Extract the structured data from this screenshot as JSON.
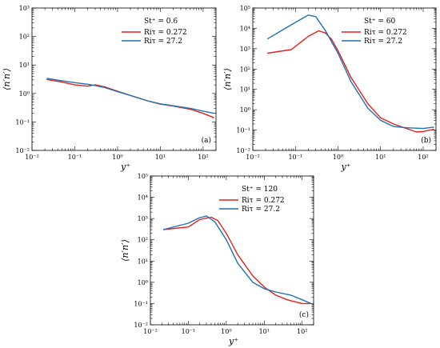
{
  "series_colors": {
    "low": "#e8201c",
    "high": "#1f72b4"
  },
  "chart_data": [
    {
      "type": "line",
      "panel_label": "(a)",
      "legend_title": "St⁺ = 0.6",
      "xlabel": "y⁺",
      "ylabel": "⟨n′n′⟩",
      "xscale": "log",
      "yscale": "log",
      "xlim": [
        0.01,
        200
      ],
      "ylim": [
        0.01,
        1000
      ],
      "xticks": [
        "10⁻²",
        "10⁻¹",
        "10⁰",
        "10¹",
        "10²"
      ],
      "yticks": [
        "10⁻²",
        "10⁻¹",
        "10⁰",
        "10¹",
        "10²",
        "10³"
      ],
      "legend": "top-right",
      "series": [
        {
          "name": "Riτ = 0.272",
          "color_key": "low",
          "x": [
            0.022,
            0.05,
            0.1,
            0.2,
            0.3,
            0.5,
            1,
            2,
            5,
            10,
            20,
            50,
            100,
            180
          ],
          "y": [
            3.1,
            2.5,
            2.0,
            1.8,
            2.0,
            1.7,
            1.2,
            0.85,
            0.55,
            0.42,
            0.36,
            0.28,
            0.2,
            0.14
          ]
        },
        {
          "name": "Riτ = 27.2",
          "color_key": "high",
          "x": [
            0.022,
            0.05,
            0.1,
            0.2,
            0.3,
            0.5,
            1,
            2,
            5,
            10,
            20,
            50,
            100,
            180
          ],
          "y": [
            3.4,
            2.8,
            2.4,
            2.1,
            1.9,
            1.6,
            1.15,
            0.85,
            0.55,
            0.43,
            0.37,
            0.3,
            0.24,
            0.2
          ]
        }
      ]
    },
    {
      "type": "line",
      "panel_label": "(b)",
      "legend_title": "St⁺ = 60",
      "xlabel": "y⁺",
      "ylabel": "⟨n′n′⟩",
      "xscale": "log",
      "yscale": "log",
      "xlim": [
        0.01,
        200
      ],
      "ylim": [
        0.01,
        100000
      ],
      "xticks": [
        "10⁻²",
        "10⁻¹",
        "10⁰",
        "10¹",
        "10²"
      ],
      "yticks": [
        "10⁻²",
        "10⁻¹",
        "10⁰",
        "10¹",
        "10²",
        "10³",
        "10⁴",
        "10⁵"
      ],
      "legend": "top-right",
      "series": [
        {
          "name": "Riτ = 0.272",
          "color_key": "low",
          "x": [
            0.022,
            0.08,
            0.2,
            0.35,
            0.5,
            0.7,
            1,
            2,
            5,
            10,
            20,
            40,
            70,
            100,
            180
          ],
          "y": [
            600,
            900,
            4000,
            7500,
            6000,
            3000,
            800,
            40,
            2.0,
            0.4,
            0.2,
            0.12,
            0.08,
            0.085,
            0.11
          ]
        },
        {
          "name": "Riτ = 27.2",
          "color_key": "high",
          "x": [
            0.022,
            0.08,
            0.2,
            0.3,
            0.5,
            1,
            2,
            5,
            10,
            20,
            40,
            100,
            180
          ],
          "y": [
            3000,
            15000,
            45000,
            38000,
            8000,
            600,
            25,
            1.2,
            0.3,
            0.15,
            0.13,
            0.12,
            0.14
          ]
        }
      ]
    },
    {
      "type": "line",
      "panel_label": "(c)",
      "legend_title": "St⁺ = 120",
      "xlabel": "y⁺",
      "ylabel": "⟨n′n′⟩",
      "xscale": "log",
      "yscale": "log",
      "xlim": [
        0.01,
        200
      ],
      "ylim": [
        0.01,
        100000
      ],
      "xticks": [
        "10⁻²",
        "10⁻¹",
        "10⁰",
        "10¹",
        "10²"
      ],
      "yticks": [
        "10⁻²",
        "10⁻¹",
        "10⁰",
        "10¹",
        "10²",
        "10³",
        "10⁴",
        "10⁵"
      ],
      "legend": "top-right",
      "series": [
        {
          "name": "Riτ = 0.272",
          "color_key": "low",
          "x": [
            0.022,
            0.1,
            0.2,
            0.4,
            0.6,
            1,
            2,
            5,
            10,
            20,
            40,
            100,
            170
          ],
          "y": [
            300,
            400,
            900,
            1150,
            800,
            200,
            20,
            2.0,
            0.6,
            0.25,
            0.15,
            0.1,
            0.1
          ]
        },
        {
          "name": "Riτ = 27.2",
          "color_key": "high",
          "x": [
            0.022,
            0.1,
            0.2,
            0.3,
            0.5,
            1,
            2,
            5,
            10,
            20,
            50,
            100,
            170
          ],
          "y": [
            300,
            600,
            1100,
            1300,
            700,
            100,
            8,
            1.0,
            0.5,
            0.35,
            0.25,
            0.15,
            0.1
          ]
        }
      ]
    }
  ]
}
